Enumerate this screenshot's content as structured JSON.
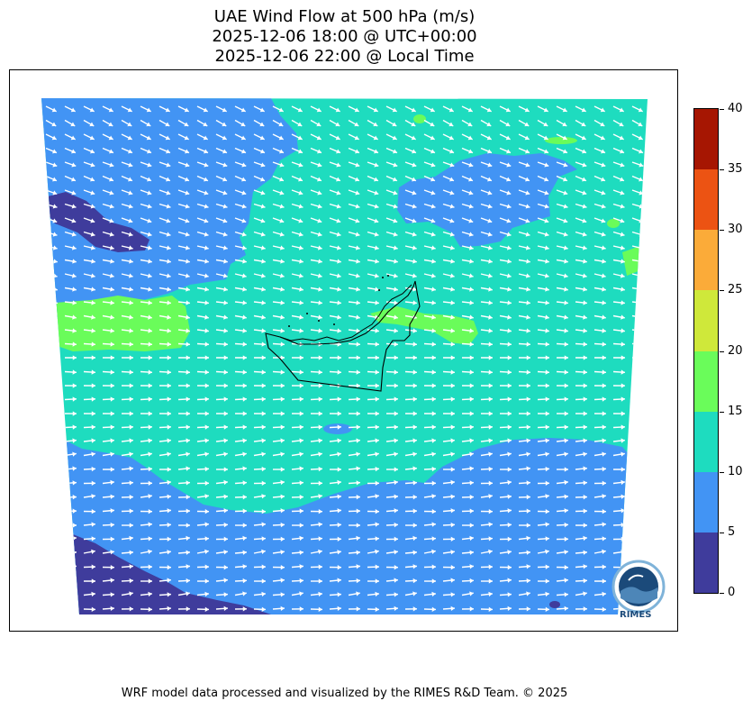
{
  "title_lines": [
    "UAE Wind Flow at 500 hPa (m/s)",
    "2025-12-06 18:00 @ UTC+00:00",
    "2025-12-06 22:00 @ Local Time"
  ],
  "footer": "WRF model data processed and visualized by the RIMES R&D Team. © 2025",
  "logo_text": "RIMES",
  "chart_data": {
    "type": "heatmap",
    "variable": "wind speed at 500 hPa",
    "units": "m/s",
    "vectors": "white wind arrows, flow predominantly west-to-east; northwesterly in the north half, westerly in the south half",
    "colorbar": {
      "ticks": [
        0,
        5,
        10,
        15,
        20,
        25,
        30,
        35,
        40
      ],
      "bins": [
        {
          "range": [
            0,
            5
          ],
          "color": "#3f3c9c"
        },
        {
          "range": [
            5,
            10
          ],
          "color": "#4294f4"
        },
        {
          "range": [
            10,
            15
          ],
          "color": "#1edcbf"
        },
        {
          "range": [
            15,
            20
          ],
          "color": "#6afc5a"
        },
        {
          "range": [
            20,
            25
          ],
          "color": "#cfe83a"
        },
        {
          "range": [
            25,
            30
          ],
          "color": "#fbab39"
        },
        {
          "range": [
            30,
            35
          ],
          "color": "#ec5313"
        },
        {
          "range": [
            35,
            40
          ],
          "color": "#a61602"
        }
      ]
    },
    "regions": [
      {
        "label": "north / center band",
        "speed_bin": [
          10,
          15
        ]
      },
      {
        "label": "northwest corner",
        "speed_bin": [
          5,
          10
        ]
      },
      {
        "label": "northeast patch",
        "speed_bin": [
          5,
          10
        ]
      },
      {
        "label": "south band",
        "speed_bin": [
          5,
          10
        ]
      },
      {
        "label": "far west small pocket",
        "speed_bin": [
          0,
          5
        ]
      },
      {
        "label": "southwest corner",
        "speed_bin": [
          0,
          5
        ]
      },
      {
        "label": "west jet patch",
        "speed_bin": [
          15,
          20
        ]
      },
      {
        "label": "northeast UAE coast patch",
        "speed_bin": [
          15,
          20
        ]
      }
    ]
  }
}
